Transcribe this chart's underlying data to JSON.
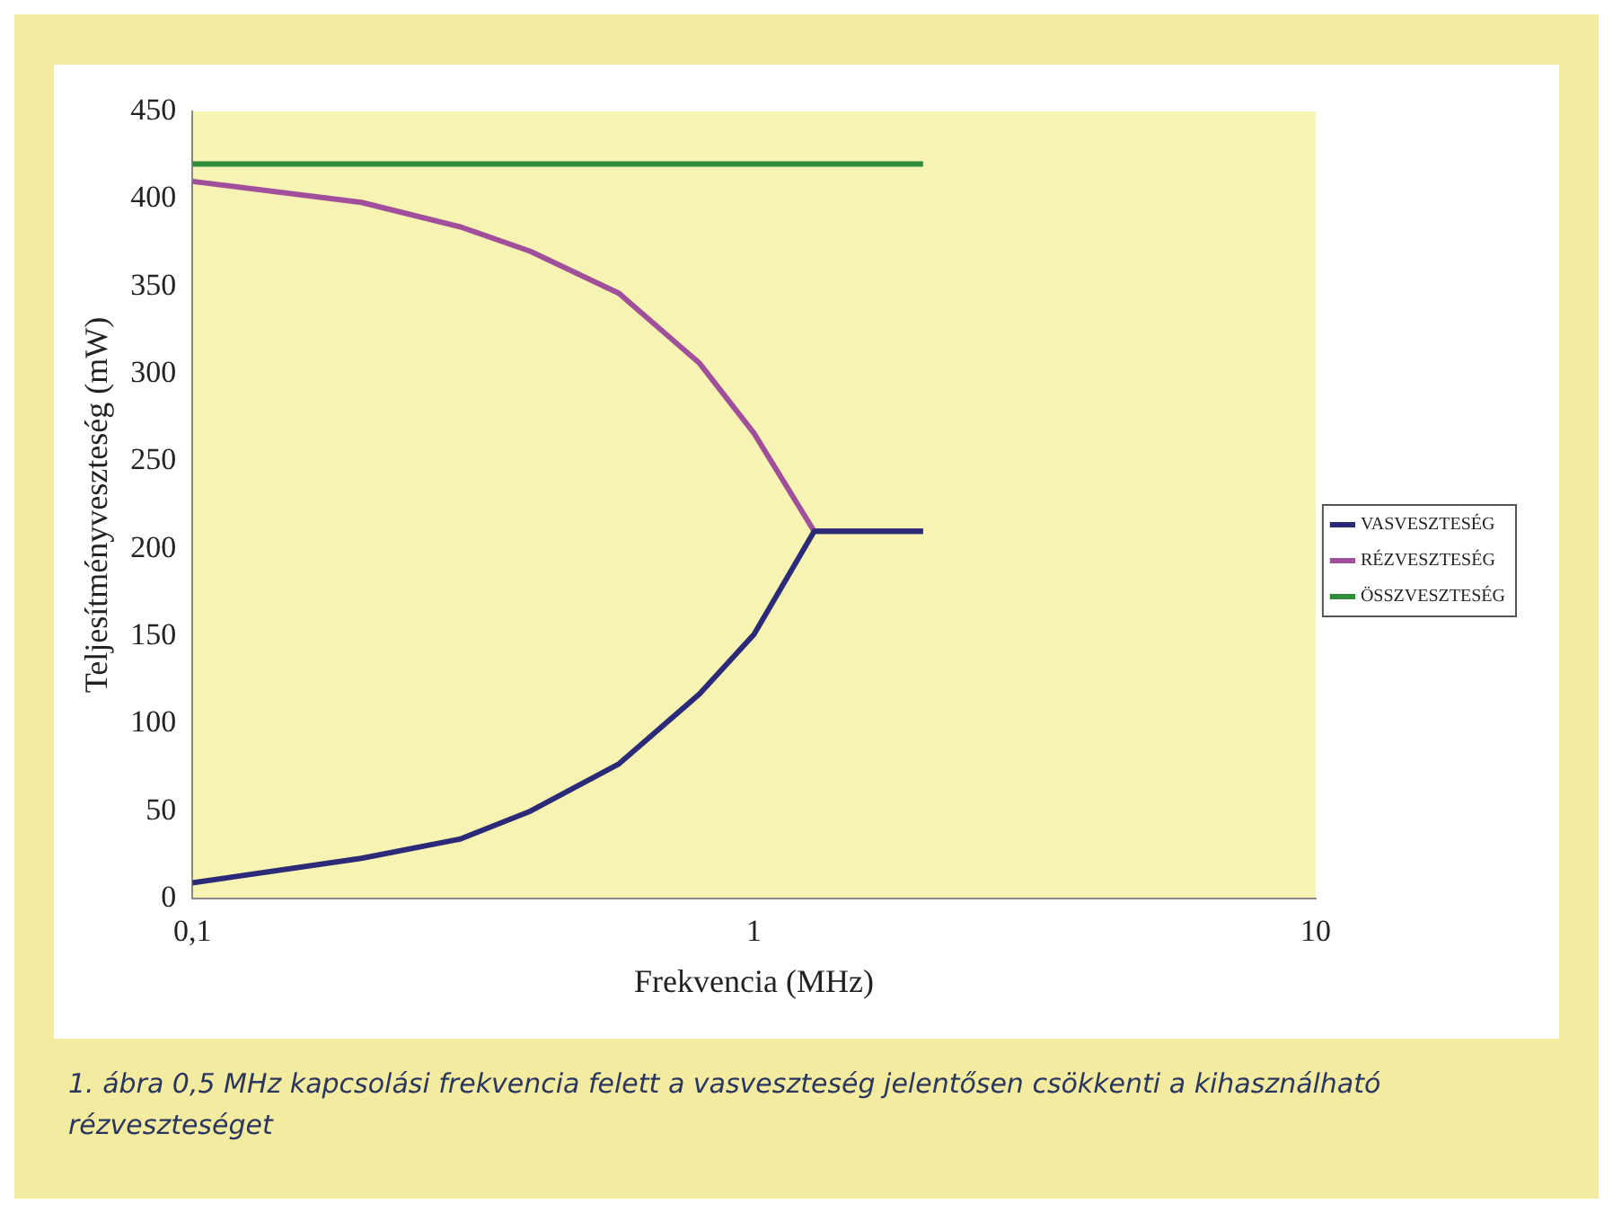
{
  "chart_data": {
    "type": "line",
    "xlabel": "Frekvencia (MHz)",
    "ylabel": "Teljesítményveszteség (mW)",
    "log": "x",
    "legend": "right",
    "xlim": [
      0.1,
      10
    ],
    "xticks": [
      {
        "value": 0.1,
        "label": "0,1"
      },
      1,
      10
    ],
    "ylim": [
      0,
      450
    ],
    "yticks": [
      0,
      50,
      100,
      150,
      200,
      250,
      300,
      350,
      400,
      450
    ],
    "series": [
      {
        "name": "VASVESZTESÉG",
        "color": "#2b2a78",
        "x": [
          0.1,
          0.2,
          0.3,
          0.4,
          0.575,
          0.8,
          1,
          1.28,
          2
        ],
        "values": [
          9,
          23,
          34,
          50,
          77,
          117,
          151,
          210,
          210
        ]
      },
      {
        "name": "RÉZVESZTESÉG",
        "color": "#a0509a",
        "x": [
          0.1,
          0.2,
          0.3,
          0.4,
          0.575,
          0.8,
          1,
          1.28,
          2
        ],
        "values": [
          410,
          398,
          384,
          370,
          346,
          306,
          266,
          210,
          210
        ]
      },
      {
        "name": "ÖSSZVESZTESÉG",
        "color": "#2e8b3a",
        "x": [
          0.1,
          2
        ],
        "values": [
          420,
          420
        ]
      }
    ],
    "annotations": [
      "1. ábra 0,5 MHz kapcsolási frekvencia felett a vasveszteség jelentősen csökkenti a kihasználható rézveszteséget"
    ]
  }
}
